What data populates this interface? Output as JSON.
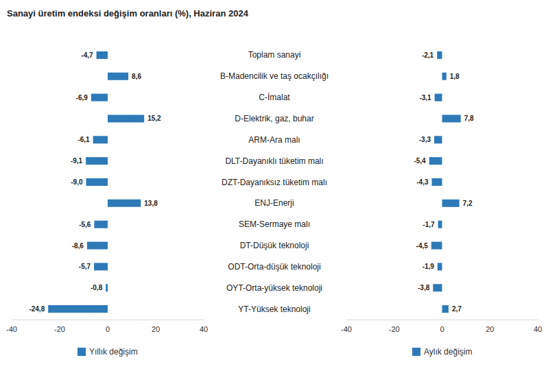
{
  "chart_data": [
    {
      "type": "bar",
      "title": "Sanayi üretim endeksi değişim oranları (%), Haziran 2024",
      "orientation": "horizontal",
      "categories": [
        "Toplam sanayi",
        "B-Madencilik ve taş ocakçılığı",
        "C-İmalat",
        "D-Elektrik, gaz, buhar",
        "ARM-Ara malı",
        "DLT-Dayanıklı tüketim malı",
        "DZT-Dayanıksız tüketim malı",
        "ENJ-Enerji",
        "SEM-Sermaye malı",
        "DT-Düşük teknoloji",
        "ODT-Orta-düşük teknoloji",
        "OYT-Orta-yüksek teknoloji",
        "YT-Yüksek teknoloji"
      ],
      "series": [
        {
          "name": "Yıllık değişim",
          "color": "#2e7ab8",
          "values": [
            -4.7,
            8.6,
            -6.9,
            15.2,
            -6.1,
            -9.1,
            -9.0,
            13.8,
            -5.6,
            -8.6,
            -5.7,
            -0.8,
            -24.8
          ],
          "value_labels": [
            "-4,7",
            "8,6",
            "-6,9",
            "15,2",
            "-6,1",
            "-9,1",
            "-9,0",
            "13,8",
            "-5,6",
            "-8,6",
            "-5,7",
            "-0,8",
            "-24,8"
          ]
        }
      ],
      "xlim": [
        -40,
        40
      ],
      "xticks": [
        -40,
        -20,
        0,
        20,
        40
      ],
      "data_labels": true,
      "grid": false,
      "legend": "bottom"
    },
    {
      "type": "bar",
      "orientation": "horizontal",
      "categories": [
        "Toplam sanayi",
        "B-Madencilik ve taş ocakçılığı",
        "C-İmalat",
        "D-Elektrik, gaz, buhar",
        "ARM-Ara malı",
        "DLT-Dayanıklı tüketim malı",
        "DZT-Dayanıksız tüketim malı",
        "ENJ-Enerji",
        "SEM-Sermaye malı",
        "DT-Düşük teknoloji",
        "ODT-Orta-düşük teknoloji",
        "OYT-Orta-yüksek teknoloji",
        "YT-Yüksek teknoloji"
      ],
      "series": [
        {
          "name": "Aylık değişim",
          "color": "#2e7ab8",
          "values": [
            -2.1,
            1.8,
            -3.1,
            7.8,
            -3.3,
            -5.4,
            -4.3,
            7.2,
            -1.7,
            -4.5,
            -1.9,
            -3.8,
            2.7
          ],
          "value_labels": [
            "-2,1",
            "1,8",
            "-3,1",
            "7,8",
            "-3,3",
            "-5,4",
            "-4,3",
            "7,2",
            "-1,7",
            "-4,5",
            "-1,9",
            "-3,8",
            "2,7"
          ]
        }
      ],
      "xlim": [
        -40,
        40
      ],
      "xticks": [
        -40,
        -20,
        0,
        20,
        40
      ],
      "data_labels": true,
      "grid": false,
      "legend": "bottom"
    }
  ]
}
